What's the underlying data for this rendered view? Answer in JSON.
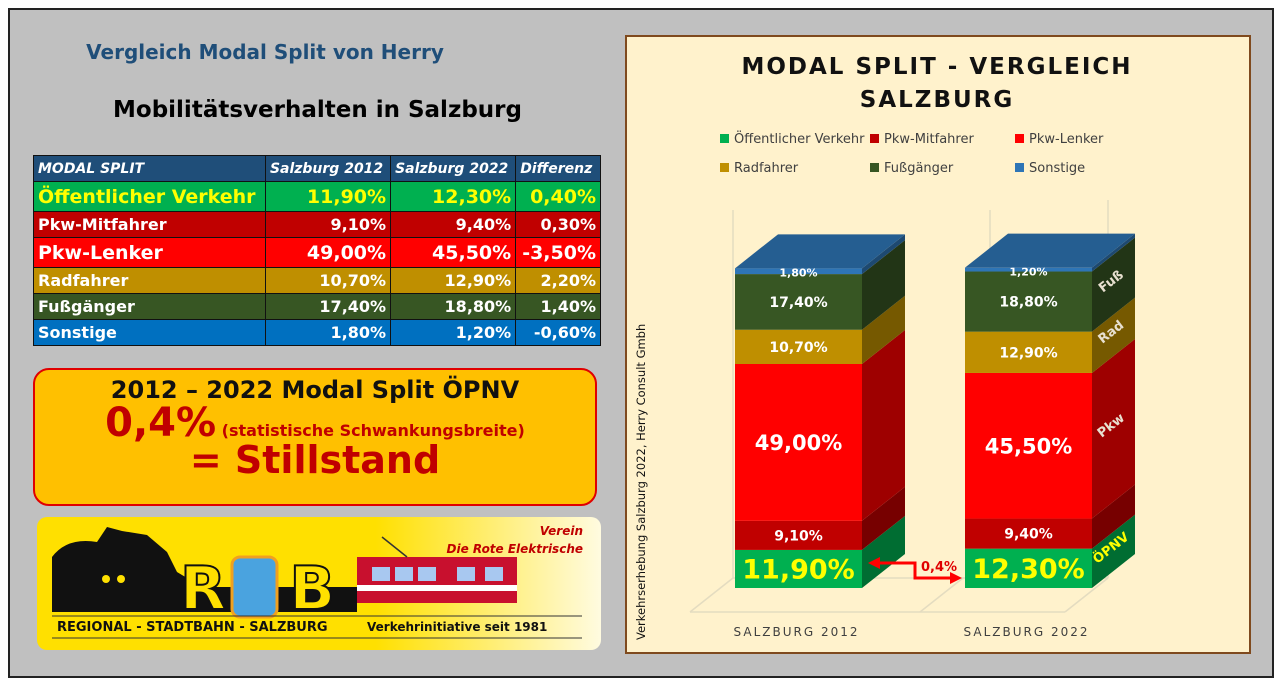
{
  "left": {
    "subtitle": "Vergleich Modal Split von Herry",
    "heading": "Mobilitätsverhalten in Salzburg",
    "table": {
      "headers": [
        "MODAL SPLIT",
        "Salzburg 2012",
        "Salzburg 2022",
        "Differenz"
      ],
      "rows": [
        {
          "label": "Öffentlicher Verkehr",
          "v2012": "11,90%",
          "v2022": "12,30%",
          "diff": "0,40%",
          "bg": "#00b050",
          "fg": "#ffff00"
        },
        {
          "label": "Pkw-Mitfahrer",
          "v2012": "9,10%",
          "v2022": "9,40%",
          "diff": "0,30%",
          "bg": "#c00000",
          "fg": "#ffffff"
        },
        {
          "label": "Pkw-Lenker",
          "v2012": "49,00%",
          "v2022": "45,50%",
          "diff": "-3,50%",
          "bg": "#ff0000",
          "fg": "#ffffff"
        },
        {
          "label": "Radfahrer",
          "v2012": "10,70%",
          "v2022": "12,90%",
          "diff": "2,20%",
          "bg": "#bf8f00",
          "fg": "#ffffff"
        },
        {
          "label": "Fußgänger",
          "v2012": "17,40%",
          "v2022": "18,80%",
          "diff": "1,40%",
          "bg": "#375623",
          "fg": "#ffffff"
        },
        {
          "label": "Sonstige",
          "v2012": "1,80%",
          "v2022": "1,20%",
          "diff": "-0,60%",
          "bg": "#0070c0",
          "fg": "#ffffff"
        }
      ]
    },
    "callout": {
      "line1": "2012 – 2022 Modal Split ÖPNV",
      "big": "0,4%",
      "small": "(statistische Schwankungsbreite)",
      "line3": "= Stillstand"
    },
    "logo": {
      "letters": "RSB",
      "club_line1": "Verein",
      "club_line2": "Die Rote Elektrische",
      "name": "REGIONAL - STADTBAHN - SALZBURG",
      "tagline": "Verkehrinitiative seit 1981"
    }
  },
  "chart_data": {
    "type": "bar",
    "stacked": true,
    "style": "3d-stacked-column",
    "title_line1": "MODAL SPLIT - VERGLEICH",
    "title_line2": "SALZBURG",
    "source_label": "Verkehrserhebung Salzburg 2022, Herry Consult Gmbh",
    "categories": [
      "SALZBURG 2012",
      "SALZBURG 2022"
    ],
    "ylim": [
      0,
      100
    ],
    "legend_position": "top",
    "series": [
      {
        "name": "Öffentlicher Verkehr",
        "values": [
          11.9,
          12.3
        ],
        "labels": [
          "11,90%",
          "12,30%"
        ],
        "color": "#00b050",
        "label_color": "#ffff00",
        "side_label": "ÖPNV"
      },
      {
        "name": "Pkw-Mitfahrer",
        "values": [
          9.1,
          9.4
        ],
        "labels": [
          "9,10%",
          "9,40%"
        ],
        "color": "#c00000",
        "label_color": "#ffffff",
        "side_label": ""
      },
      {
        "name": "Pkw-Lenker",
        "values": [
          49.0,
          45.5
        ],
        "labels": [
          "49,00%",
          "45,50%"
        ],
        "color": "#ff0000",
        "label_color": "#ffffff",
        "side_label": "Pkw"
      },
      {
        "name": "Radfahrer",
        "values": [
          10.7,
          12.9
        ],
        "labels": [
          "10,70%",
          "12,90%"
        ],
        "color": "#bf8f00",
        "label_color": "#ffffff",
        "side_label": "Rad"
      },
      {
        "name": "Fußgänger",
        "values": [
          17.4,
          18.8
        ],
        "labels": [
          "17,40%",
          "18,80%"
        ],
        "color": "#375623",
        "label_color": "#ffffff",
        "side_label": "Fuß"
      },
      {
        "name": "Sonstige",
        "values": [
          1.8,
          1.2
        ],
        "labels": [
          "1,80%",
          "1,20%"
        ],
        "color": "#2e75b6",
        "label_color": "#ffffff",
        "side_label": ""
      }
    ],
    "annotation": "0,4%"
  }
}
